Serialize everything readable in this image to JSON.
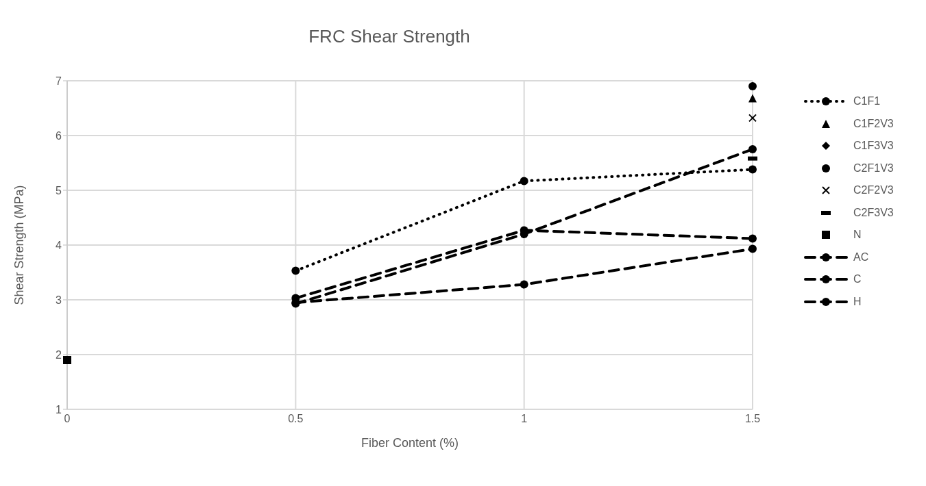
{
  "chart_data": {
    "type": "line",
    "title": "FRC Shear Strength",
    "xlabel": "Fiber Content (%)",
    "ylabel": "Shear Strength (MPa)",
    "xlim": [
      0,
      1.5
    ],
    "xticks": [
      0,
      0.5,
      1,
      1.5
    ],
    "ylim": [
      1,
      7
    ],
    "yticks": [
      1,
      2,
      3,
      4,
      5,
      6,
      7
    ],
    "grid": true,
    "legend": "right",
    "series": [
      {
        "name": "C1F1",
        "color": "#000000",
        "line_style": "dotted",
        "marker": "circle",
        "x": [
          0.5,
          1,
          1.5
        ],
        "values": [
          3.53,
          5.17,
          5.38
        ]
      },
      {
        "name": "C1F2V3",
        "type": "scatter",
        "color": "#000000",
        "marker": "triangle",
        "x": [
          1.5
        ],
        "values": [
          6.68
        ]
      },
      {
        "name": "C1F3V3",
        "type": "scatter",
        "color": "#000000",
        "marker": "diamond"
      },
      {
        "name": "C2F1V3",
        "type": "scatter",
        "color": "#000000",
        "marker": "circle",
        "x": [
          1.5
        ],
        "values": [
          6.9
        ]
      },
      {
        "name": "C2F2V3",
        "type": "scatter",
        "color": "#000000",
        "marker": "cross",
        "x": [
          1.5
        ],
        "values": [
          6.32
        ]
      },
      {
        "name": "C2F3V3",
        "type": "scatter",
        "color": "#000000",
        "x": [
          1.5
        ],
        "values": [
          5.58
        ]
      },
      {
        "name": "N",
        "type": "scatter",
        "color": "#000000",
        "marker": "square",
        "x": [
          0
        ],
        "values": [
          1.9
        ]
      },
      {
        "name": "AC",
        "color": "#000000",
        "line_style": "dashed",
        "marker": "circle",
        "x": [
          0.5,
          1,
          1.5
        ],
        "values": [
          2.95,
          3.28,
          3.93
        ]
      },
      {
        "name": "C",
        "color": "#000000",
        "line_style": "dashed",
        "marker": "circle",
        "x": [
          0.5,
          1,
          1.5
        ],
        "values": [
          3.03,
          4.27,
          4.12
        ]
      },
      {
        "name": "H",
        "color": "#000000",
        "line_style": "dashed",
        "marker": "circle",
        "x": [
          0.5,
          1,
          1.5
        ],
        "values": [
          2.93,
          4.2,
          5.75
        ]
      }
    ]
  }
}
